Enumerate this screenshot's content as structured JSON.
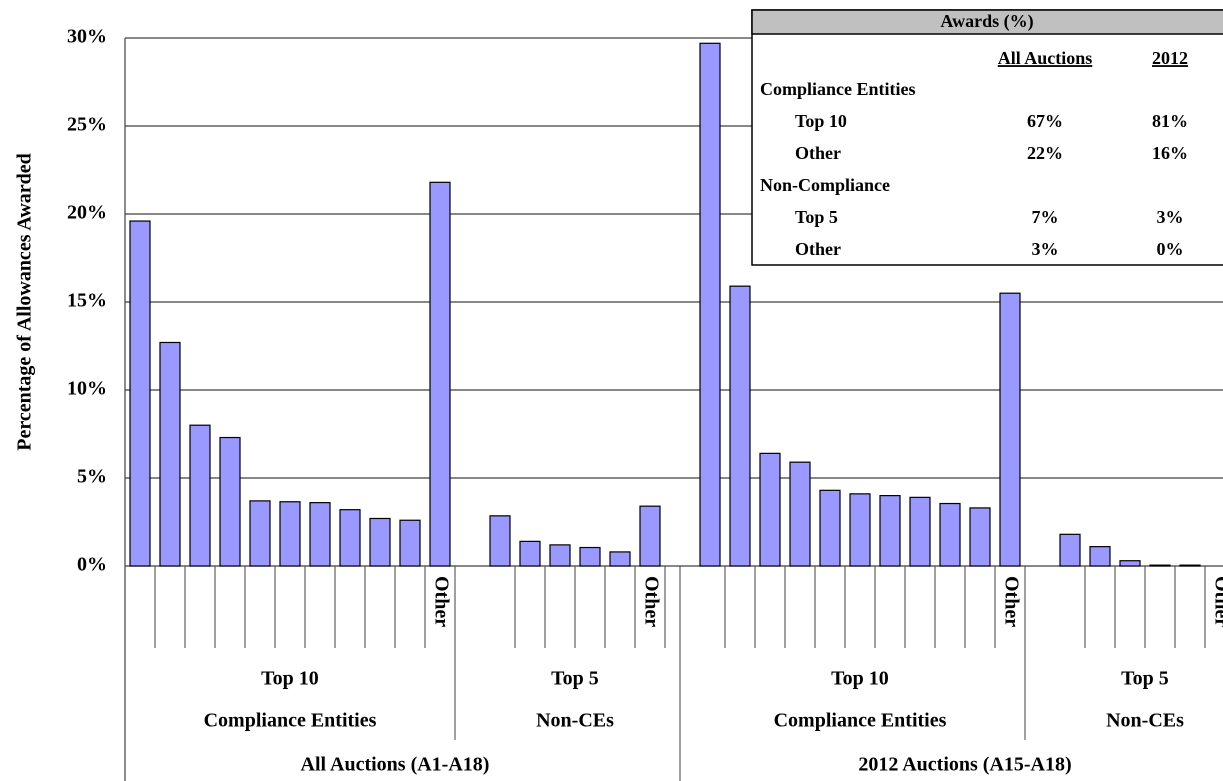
{
  "chart_data": {
    "type": "bar",
    "y_label": "Percentage of Allowances Awarded",
    "color": "#9999ff",
    "ylim": [
      0,
      30
    ],
    "yticks": [
      {
        "value": 0,
        "label": "0%"
      },
      {
        "value": 5,
        "label": "5%"
      },
      {
        "value": 10,
        "label": "10%"
      },
      {
        "value": 15,
        "label": "15%"
      },
      {
        "value": 20,
        "label": "20%"
      },
      {
        "value": 25,
        "label": "25%"
      },
      {
        "value": 30,
        "label": "30%"
      }
    ],
    "grid": true,
    "groups": [
      {
        "name": "All Auctions (A1-A18)",
        "subgroups": [
          {
            "name": "Top 10",
            "entity": "Compliance Entities",
            "categories": [
              null,
              null,
              null,
              null,
              null,
              null,
              null,
              null,
              null,
              null,
              "Other"
            ],
            "values": [
              19.6,
              12.7,
              8.0,
              7.3,
              3.7,
              3.65,
              3.6,
              3.2,
              2.7,
              2.6,
              21.8
            ]
          },
          {
            "name": "Top 5",
            "entity": "Non-CEs",
            "categories": [
              null,
              null,
              null,
              null,
              null,
              "Other"
            ],
            "values": [
              2.85,
              1.4,
              1.2,
              1.05,
              0.8,
              3.4
            ]
          }
        ]
      },
      {
        "name": "2012 Auctions (A15-A18)",
        "subgroups": [
          {
            "name": "Top 10",
            "entity": "Compliance Entities",
            "categories": [
              null,
              null,
              null,
              null,
              null,
              null,
              null,
              null,
              null,
              null,
              "Other"
            ],
            "values": [
              29.7,
              15.9,
              6.4,
              5.9,
              4.3,
              4.1,
              4.0,
              3.9,
              3.55,
              3.3,
              15.5
            ]
          },
          {
            "name": "Top 5",
            "entity": "Non-CEs",
            "categories": [
              null,
              null,
              null,
              null,
              null,
              "Other"
            ],
            "values": [
              1.8,
              1.1,
              0.3,
              0.05,
              0.05,
              0
            ]
          }
        ]
      }
    ],
    "inset_table": {
      "title": "Awards (%)",
      "columns": [
        "All Auctions",
        "2012"
      ],
      "sections": [
        {
          "name": "Compliance Entities",
          "rows": [
            {
              "label": "Top 10",
              "cells": [
                "67%",
                "81%"
              ]
            },
            {
              "label": "Other",
              "cells": [
                "22%",
                "16%"
              ]
            }
          ]
        },
        {
          "name": "Non-Compliance",
          "rows": [
            {
              "label": "Top 5",
              "cells": [
                "7%",
                "3%"
              ]
            },
            {
              "label": "Other",
              "cells": [
                "3%",
                "0%"
              ]
            }
          ]
        }
      ]
    }
  }
}
